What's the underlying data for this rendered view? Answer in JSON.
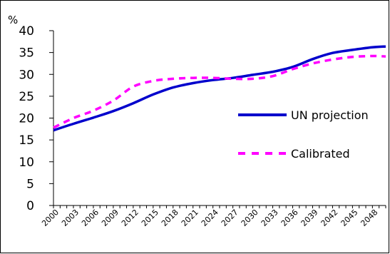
{
  "chart_data": {
    "type": "line",
    "title": "",
    "xlabel": "",
    "ylabel": "%",
    "ylim": [
      0,
      40
    ],
    "yticks": [
      0,
      5,
      10,
      15,
      20,
      25,
      30,
      35,
      40
    ],
    "xlim": [
      2000,
      2050
    ],
    "xtick_labels": [
      "2000",
      "2003",
      "2006",
      "2009",
      "2012",
      "2015",
      "2018",
      "2021",
      "2024",
      "2027",
      "2030",
      "2033",
      "2036",
      "2039",
      "2042",
      "2045",
      "2048"
    ],
    "grid": false,
    "legend_position": "right",
    "series": [
      {
        "name": "UN projection",
        "color": "#0000cc",
        "style": "solid",
        "x": [
          2000,
          2003,
          2006,
          2009,
          2012,
          2015,
          2018,
          2021,
          2024,
          2027,
          2030,
          2033,
          2036,
          2039,
          2042,
          2045,
          2048,
          2050
        ],
        "y": [
          17.2,
          18.7,
          20.1,
          21.6,
          23.4,
          25.4,
          27.0,
          28.0,
          28.7,
          29.2,
          29.9,
          30.6,
          31.7,
          33.5,
          34.9,
          35.6,
          36.2,
          36.4
        ]
      },
      {
        "name": "Calibrated",
        "color": "#ff00ff",
        "style": "dashed",
        "x": [
          2000,
          2003,
          2006,
          2009,
          2012,
          2015,
          2018,
          2021,
          2024,
          2027,
          2030,
          2033,
          2036,
          2039,
          2042,
          2045,
          2048,
          2050
        ],
        "y": [
          17.8,
          20.0,
          21.7,
          24.0,
          27.2,
          28.5,
          29.0,
          29.2,
          29.2,
          29.0,
          29.0,
          29.6,
          31.2,
          32.5,
          33.4,
          34.0,
          34.2,
          34.1
        ]
      }
    ]
  }
}
